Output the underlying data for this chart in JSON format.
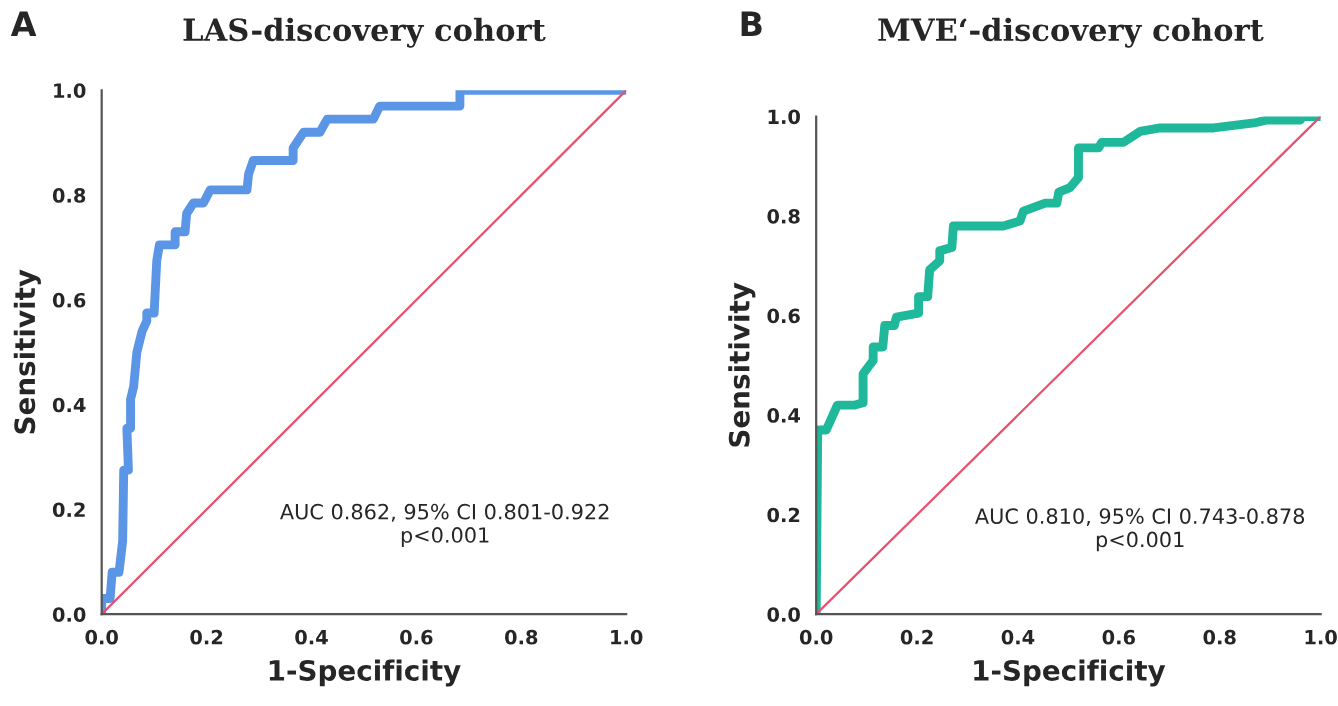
{
  "chart_data": [
    {
      "type": "line",
      "title": "LAS-discovery cohort",
      "xlabel": "1-Specificity",
      "ylabel": "Sensitivity",
      "annotations": [
        "A",
        "AUC 0.862, 95% CI 0.801-0.922\np<0.001"
      ],
      "xlim": [
        0,
        1
      ],
      "ylim": [
        0,
        1
      ],
      "xticks": [
        {
          "value": 0,
          "label": "0.0"
        },
        {
          "value": 0.2,
          "label": "0.2"
        },
        {
          "value": 0.4,
          "label": "0.4"
        },
        {
          "value": 0.6,
          "label": "0.6"
        },
        {
          "value": 0.8,
          "label": "0.8"
        },
        {
          "value": 1,
          "label": "1.0"
        }
      ],
      "yticks": [
        {
          "value": 0,
          "label": "0.0"
        },
        {
          "value": 0.2,
          "label": "0.2"
        },
        {
          "value": 0.4,
          "label": "0.4"
        },
        {
          "value": 0.6,
          "label": "0.6"
        },
        {
          "value": 0.8,
          "label": "0.8"
        },
        {
          "value": 1,
          "label": "1.0"
        }
      ],
      "grid": false,
      "legend": false,
      "series": [
        {
          "color": "#5b95e5",
          "x": [
            0,
            0,
            0.016,
            0.02,
            0.033,
            0.04,
            0.042,
            0.051,
            0.048,
            0.055,
            0.055,
            0.061,
            0.067,
            0.077,
            0.086,
            0.086,
            0.1,
            0.105,
            0.11,
            0.14,
            0.14,
            0.159,
            0.162,
            0.175,
            0.194,
            0.207,
            0.277,
            0.28,
            0.289,
            0.365,
            0.365,
            0.385,
            0.416,
            0.43,
            0.518,
            0.53,
            0.683,
            0.683,
            1
          ],
          "values": [
            0,
            0.03,
            0.03,
            0.08,
            0.08,
            0.14,
            0.275,
            0.275,
            0.355,
            0.355,
            0.41,
            0.435,
            0.5,
            0.54,
            0.56,
            0.575,
            0.575,
            0.675,
            0.705,
            0.705,
            0.73,
            0.73,
            0.765,
            0.785,
            0.785,
            0.81,
            0.81,
            0.84,
            0.866,
            0.866,
            0.89,
            0.92,
            0.92,
            0.945,
            0.945,
            0.97,
            0.97,
            1,
            1
          ]
        },
        {
          "color": "#e8506e",
          "x": [
            0,
            1
          ],
          "values": [
            0,
            1
          ]
        }
      ]
    },
    {
      "type": "line",
      "title": "MVE‘-discovery cohort",
      "xlabel": "1-Specificity",
      "ylabel": "Sensitivity",
      "annotations": [
        "B",
        "AUC 0.810, 95% CI 0.743-0.878\np<0.001"
      ],
      "xlim": [
        0,
        1
      ],
      "ylim": [
        0,
        1
      ],
      "xticks": [
        {
          "value": 0,
          "label": "0.0"
        },
        {
          "value": 0.2,
          "label": "0.2"
        },
        {
          "value": 0.4,
          "label": "0.4"
        },
        {
          "value": 0.6,
          "label": "0.6"
        },
        {
          "value": 0.8,
          "label": "0.8"
        },
        {
          "value": 1,
          "label": "1.0"
        }
      ],
      "yticks": [
        {
          "value": 0,
          "label": "0.0"
        },
        {
          "value": 0.2,
          "label": "0.2"
        },
        {
          "value": 0.4,
          "label": "0.4"
        },
        {
          "value": 0.6,
          "label": "0.6"
        },
        {
          "value": 0.8,
          "label": "0.8"
        },
        {
          "value": 1,
          "label": "1.0"
        }
      ],
      "grid": false,
      "legend": false,
      "series": [
        {
          "color": "#1fb89a",
          "x": [
            0,
            0.003,
            0.02,
            0.042,
            0.075,
            0.093,
            0.093,
            0.113,
            0.113,
            0.132,
            0.136,
            0.155,
            0.159,
            0.203,
            0.203,
            0.221,
            0.225,
            0.245,
            0.245,
            0.269,
            0.272,
            0.371,
            0.404,
            0.411,
            0.454,
            0.477,
            0.481,
            0.503,
            0.52,
            0.52,
            0.56,
            0.566,
            0.609,
            0.642,
            0.682,
            0.788,
            0.868,
            0.894,
            0.96,
            0.96,
            1
          ],
          "values": [
            0,
            0.37,
            0.37,
            0.42,
            0.42,
            0.425,
            0.483,
            0.51,
            0.537,
            0.537,
            0.58,
            0.58,
            0.597,
            0.605,
            0.638,
            0.638,
            0.692,
            0.71,
            0.73,
            0.737,
            0.78,
            0.78,
            0.79,
            0.81,
            0.826,
            0.826,
            0.848,
            0.857,
            0.877,
            0.937,
            0.937,
            0.948,
            0.948,
            0.97,
            0.977,
            0.977,
            0.987,
            0.993,
            0.993,
            1,
            1
          ]
        },
        {
          "color": "#e8506e",
          "x": [
            0,
            1
          ],
          "values": [
            0,
            1
          ]
        }
      ]
    }
  ]
}
